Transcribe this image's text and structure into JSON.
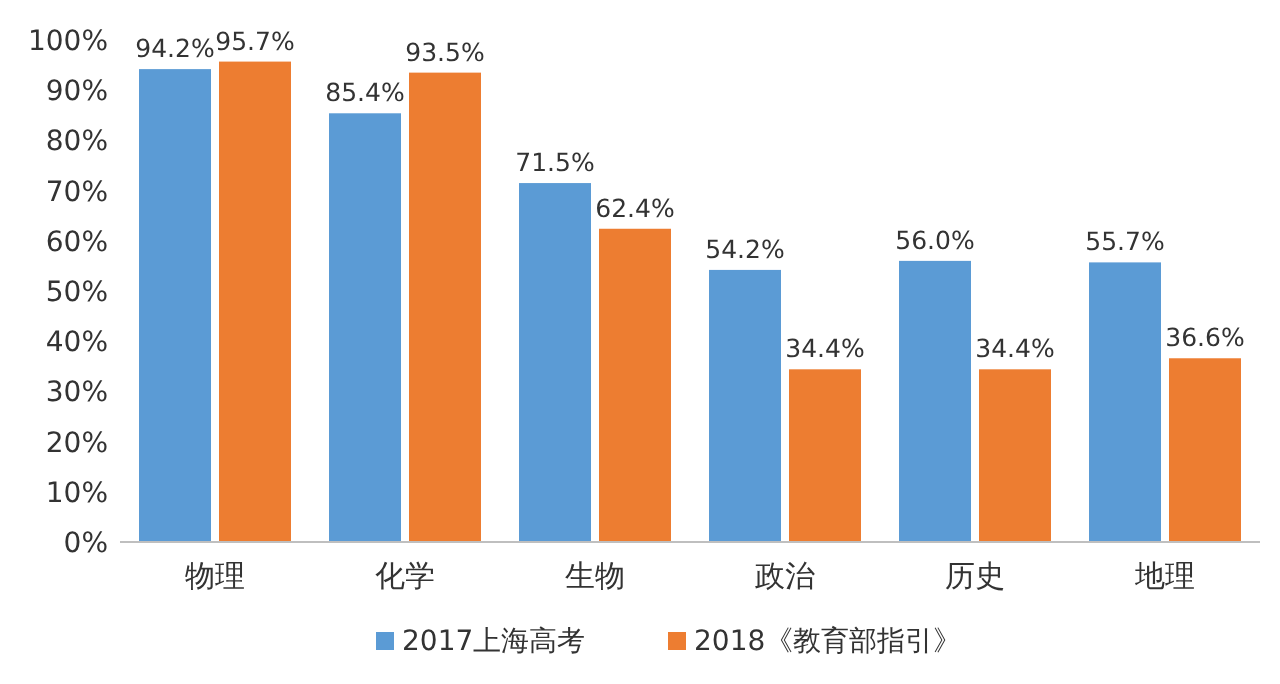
{
  "chart_data": {
    "type": "bar",
    "categories": [
      "物理",
      "化学",
      "生物",
      "政治",
      "历史",
      "地理"
    ],
    "series": [
      {
        "name": "2017上海高考",
        "color": "#5b9bd5",
        "values": [
          94.2,
          85.4,
          71.5,
          54.2,
          56.0,
          55.7
        ],
        "value_labels": [
          "94.2%",
          "85.4%",
          "71.5%",
          "54.2%",
          "56.0%",
          "55.7%"
        ]
      },
      {
        "name": "2018《教育部指引》",
        "color": "#ed7d31",
        "values": [
          95.7,
          93.5,
          62.4,
          34.4,
          34.4,
          36.6
        ],
        "value_labels": [
          "95.7%",
          "93.5%",
          "62.4%",
          "34.4%",
          "34.4%",
          "36.6%"
        ]
      }
    ],
    "ylim": [
      0,
      100
    ],
    "yticks": [
      {
        "value": 0,
        "label": "0%"
      },
      {
        "value": 10,
        "label": "10%"
      },
      {
        "value": 20,
        "label": "20%"
      },
      {
        "value": 30,
        "label": "30%"
      },
      {
        "value": 40,
        "label": "40%"
      },
      {
        "value": 50,
        "label": "50%"
      },
      {
        "value": 60,
        "label": "60%"
      },
      {
        "value": 70,
        "label": "70%"
      },
      {
        "value": 80,
        "label": "80%"
      },
      {
        "value": 90,
        "label": "90%"
      },
      {
        "value": 100,
        "label": "100%"
      }
    ],
    "legend": "bottom"
  }
}
